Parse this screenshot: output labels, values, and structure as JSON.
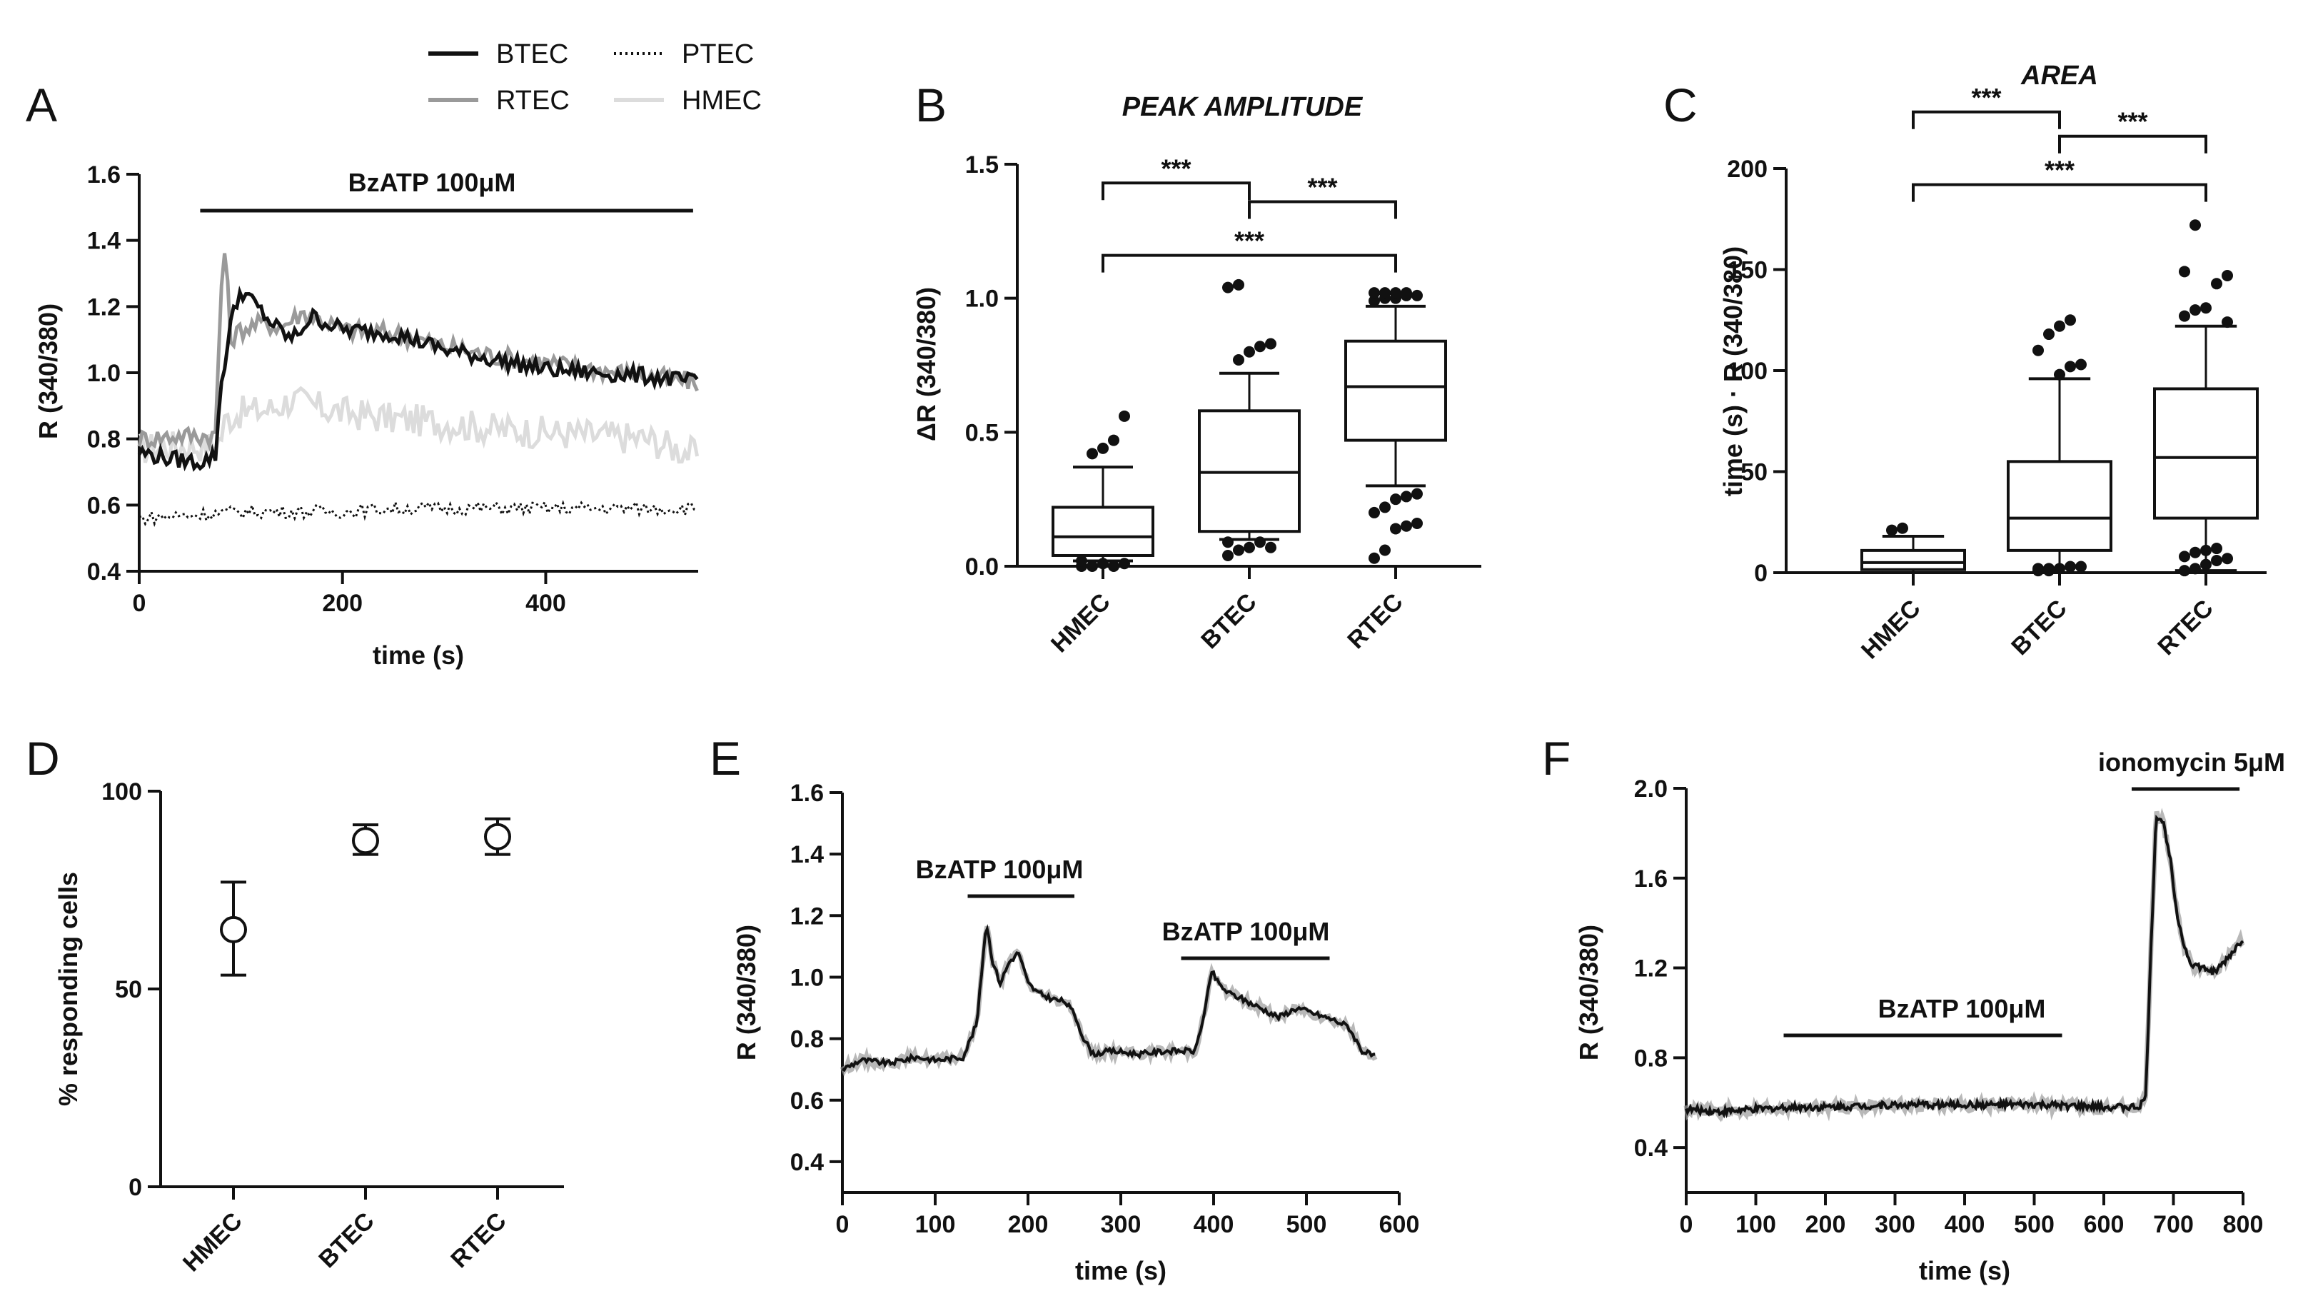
{
  "chart_data": [
    {
      "panel": "A",
      "type": "line",
      "xlabel": "time (s)",
      "ylabel": "R (340/380)",
      "xlim": [
        0,
        550
      ],
      "ylim": [
        0.4,
        1.6
      ],
      "xticks": [
        0,
        200,
        400
      ],
      "yticks": [
        0.4,
        0.6,
        0.8,
        1.0,
        1.2,
        1.4,
        1.6
      ],
      "xtick_labels": [
        "0",
        "200",
        "400"
      ],
      "ytick_labels": [
        "0.4",
        "0.6",
        "0.8",
        "1.0",
        "1.2",
        "1.4",
        "1.6"
      ],
      "annotation": {
        "label": "BzATP 100μM",
        "x_start": 60,
        "x_end": 545
      },
      "legend": [
        {
          "name": "BTEC",
          "style": "solid",
          "color": "#111111"
        },
        {
          "name": "PTEC",
          "style": "dotted",
          "color": "#111111"
        },
        {
          "name": "RTEC",
          "style": "solid",
          "color": "#9a9a9a"
        },
        {
          "name": "HMEC",
          "style": "solid",
          "color": "#dcdcdc"
        }
      ],
      "series": [
        {
          "name": "HMEC",
          "color": "#dcdcdc",
          "x": [
            0,
            40,
            70,
            80,
            85,
            100,
            130,
            150,
            160,
            170,
            200,
            250,
            300,
            350,
            400,
            450,
            500,
            550
          ],
          "y": [
            0.77,
            0.78,
            0.78,
            0.8,
            0.86,
            0.88,
            0.89,
            0.92,
            0.91,
            0.9,
            0.88,
            0.86,
            0.85,
            0.83,
            0.82,
            0.81,
            0.8,
            0.75
          ]
        },
        {
          "name": "RTEC",
          "color": "#9a9a9a",
          "x": [
            0,
            40,
            75,
            80,
            83,
            86,
            90,
            100,
            120,
            140,
            160,
            180,
            200,
            250,
            300,
            350,
            400,
            450,
            500,
            550
          ],
          "y": [
            0.8,
            0.81,
            0.81,
            1.2,
            1.4,
            1.3,
            1.1,
            1.13,
            1.15,
            1.14,
            1.18,
            1.16,
            1.13,
            1.12,
            1.08,
            1.05,
            1.03,
            1.01,
            0.99,
            0.97
          ]
        },
        {
          "name": "BTEC",
          "color": "#111111",
          "x": [
            0,
            30,
            60,
            75,
            80,
            90,
            100,
            110,
            130,
            150,
            170,
            200,
            250,
            300,
            350,
            400,
            450,
            500,
            550
          ],
          "y": [
            0.76,
            0.74,
            0.73,
            0.75,
            0.95,
            1.15,
            1.25,
            1.22,
            1.15,
            1.1,
            1.17,
            1.13,
            1.12,
            1.07,
            1.04,
            1.01,
            1.0,
            0.99,
            0.97
          ]
        },
        {
          "name": "PTEC",
          "color": "#111111",
          "x": [
            0,
            50,
            100,
            150,
            200,
            250,
            300,
            350,
            400,
            450,
            500,
            550
          ],
          "y": [
            0.56,
            0.57,
            0.58,
            0.58,
            0.58,
            0.59,
            0.59,
            0.59,
            0.59,
            0.59,
            0.59,
            0.59
          ]
        }
      ]
    },
    {
      "panel": "B",
      "type": "box",
      "title": "PEAK AMPLITUDE",
      "ylabel": "ΔR (340/380)",
      "ylim": [
        0,
        1.5
      ],
      "yticks": [
        0.0,
        0.5,
        1.0,
        1.5
      ],
      "ytick_labels": [
        "0.0",
        "0.5",
        "1.0",
        "1.5"
      ],
      "categories": [
        "HMEC",
        "BTEC",
        "RTEC"
      ],
      "boxes": [
        {
          "category": "HMEC",
          "whisker_low": 0.02,
          "q1": 0.04,
          "median": 0.11,
          "q3": 0.22,
          "whisker_high": 0.37,
          "outliers": [
            0.0,
            0.0,
            0.01,
            0.0,
            0.01,
            0.02,
            0.42,
            0.44,
            0.47,
            0.56
          ]
        },
        {
          "category": "BTEC",
          "whisker_low": 0.1,
          "q1": 0.13,
          "median": 0.35,
          "q3": 0.58,
          "whisker_high": 0.72,
          "outliers": [
            0.04,
            0.06,
            0.07,
            0.09,
            0.07,
            0.09,
            0.77,
            0.8,
            0.82,
            0.83,
            1.04,
            1.05
          ]
        },
        {
          "category": "RTEC",
          "whisker_low": 0.3,
          "q1": 0.47,
          "median": 0.67,
          "q3": 0.84,
          "whisker_high": 0.97,
          "outliers": [
            0.03,
            0.06,
            0.14,
            0.15,
            0.16,
            0.2,
            0.22,
            0.25,
            0.26,
            0.27,
            0.99,
            1.0,
            1.0,
            1.01,
            1.01,
            1.02,
            1.02,
            1.02,
            1.02
          ]
        }
      ],
      "significance": [
        {
          "from": "HMEC",
          "to": "BTEC",
          "label": "***",
          "y": 1.43
        },
        {
          "from": "BTEC",
          "to": "RTEC",
          "label": "***",
          "y": 1.36
        },
        {
          "from": "HMEC",
          "to": "RTEC",
          "label": "***",
          "y": 1.16
        }
      ]
    },
    {
      "panel": "C",
      "type": "box",
      "title": "AREA",
      "ylabel": "time (s) · R (340/380)",
      "ylim": [
        0,
        200
      ],
      "yticks": [
        0,
        50,
        100,
        150,
        200
      ],
      "ytick_labels": [
        "0",
        "50",
        "100",
        "150",
        "200"
      ],
      "categories": [
        "HMEC",
        "BTEC",
        "RTEC"
      ],
      "boxes": [
        {
          "category": "HMEC",
          "whisker_low": 0,
          "q1": 1.5,
          "median": 5,
          "q3": 11,
          "whisker_high": 18,
          "outliers": [
            21,
            22
          ]
        },
        {
          "category": "BTEC",
          "whisker_low": 0,
          "q1": 11,
          "median": 27,
          "q3": 55,
          "whisker_high": 96,
          "outliers": [
            1,
            2,
            2,
            3,
            3,
            2,
            1,
            98,
            102,
            103,
            110,
            118,
            122,
            125
          ]
        },
        {
          "category": "RTEC",
          "whisker_low": 1,
          "q1": 27,
          "median": 57,
          "q3": 91,
          "whisker_high": 122,
          "outliers": [
            1,
            2,
            4,
            6,
            7,
            8,
            10,
            11,
            12,
            124,
            127,
            130,
            131,
            143,
            147,
            149,
            172
          ]
        }
      ],
      "significance": [
        {
          "from": "HMEC",
          "to": "BTEC",
          "label": "***",
          "y": 228
        },
        {
          "from": "BTEC",
          "to": "RTEC",
          "label": "***",
          "y": 216
        },
        {
          "from": "HMEC",
          "to": "RTEC",
          "label": "***",
          "y": 192
        }
      ]
    },
    {
      "panel": "D",
      "type": "scatter",
      "ylabel": "% responding cells",
      "ylim": [
        0,
        100
      ],
      "yticks": [
        0,
        50,
        100
      ],
      "ytick_labels": [
        "0",
        "50",
        "100"
      ],
      "categories": [
        "HMEC",
        "BTEC",
        "RTEC"
      ],
      "values": [
        65,
        87.5,
        88.5
      ],
      "error_low": [
        53.5,
        84,
        84
      ],
      "error_high": [
        77,
        91.5,
        93
      ]
    },
    {
      "panel": "E",
      "type": "line",
      "xlabel": "time (s)",
      "ylabel": "R (340/380)",
      "xlim": [
        0,
        600
      ],
      "ylim": [
        0.3,
        1.6
      ],
      "xticks": [
        0,
        100,
        200,
        300,
        400,
        500,
        600
      ],
      "yticks": [
        0.4,
        0.6,
        0.8,
        1.0,
        1.2,
        1.4,
        1.6
      ],
      "xtick_labels": [
        "0",
        "100",
        "200",
        "300",
        "400",
        "500",
        "600"
      ],
      "ytick_labels": [
        "0.4",
        "0.6",
        "0.8",
        "1.0",
        "1.2",
        "1.4",
        "1.6"
      ],
      "annotations": [
        {
          "label": "BzATP 100μM",
          "x_start": 135,
          "x_end": 250
        },
        {
          "label": "BzATP 100μM",
          "x_start": 365,
          "x_end": 525
        }
      ],
      "series": [
        {
          "name": "trace",
          "color": "#111111",
          "x": [
            0,
            20,
            50,
            80,
            100,
            130,
            145,
            155,
            162,
            170,
            180,
            190,
            200,
            210,
            225,
            240,
            250,
            260,
            270,
            290,
            320,
            350,
            380,
            390,
            398,
            405,
            415,
            430,
            450,
            470,
            490,
            510,
            530,
            545,
            560,
            575
          ],
          "y": [
            0.7,
            0.73,
            0.72,
            0.74,
            0.73,
            0.74,
            0.85,
            1.18,
            1.05,
            0.98,
            1.05,
            1.08,
            0.98,
            0.95,
            0.93,
            0.92,
            0.88,
            0.8,
            0.75,
            0.76,
            0.75,
            0.76,
            0.76,
            0.88,
            1.02,
            0.98,
            0.95,
            0.93,
            0.9,
            0.87,
            0.9,
            0.88,
            0.86,
            0.84,
            0.76,
            0.74
          ]
        }
      ]
    },
    {
      "panel": "F",
      "type": "line",
      "xlabel": "time (s)",
      "ylabel": "R (340/380)",
      "xlim": [
        0,
        800
      ],
      "ylim": [
        0.2,
        2.0
      ],
      "xticks": [
        0,
        100,
        200,
        300,
        400,
        500,
        600,
        700,
        800
      ],
      "yticks": [
        0.4,
        0.8,
        1.2,
        1.6,
        2.0
      ],
      "xtick_labels": [
        "0",
        "100",
        "200",
        "300",
        "400",
        "500",
        "600",
        "700",
        "800"
      ],
      "ytick_labels": [
        "0.4",
        "0.8",
        "1.2",
        "1.6",
        "2.0"
      ],
      "annotations": [
        {
          "label": "BzATP 100μM",
          "x_start": 140,
          "x_end": 540
        },
        {
          "label": "ionomycin 5μM",
          "x_start": 640,
          "x_end": 795
        }
      ],
      "series": [
        {
          "name": "trace",
          "color": "#111111",
          "x": [
            0,
            50,
            100,
            150,
            200,
            300,
            400,
            500,
            600,
            650,
            660,
            668,
            675,
            685,
            695,
            705,
            715,
            725,
            740,
            760,
            780,
            800
          ],
          "y": [
            0.57,
            0.56,
            0.57,
            0.58,
            0.58,
            0.59,
            0.59,
            0.59,
            0.58,
            0.58,
            0.62,
            1.3,
            1.88,
            1.85,
            1.7,
            1.45,
            1.3,
            1.22,
            1.2,
            1.18,
            1.25,
            1.33
          ]
        }
      ]
    }
  ]
}
